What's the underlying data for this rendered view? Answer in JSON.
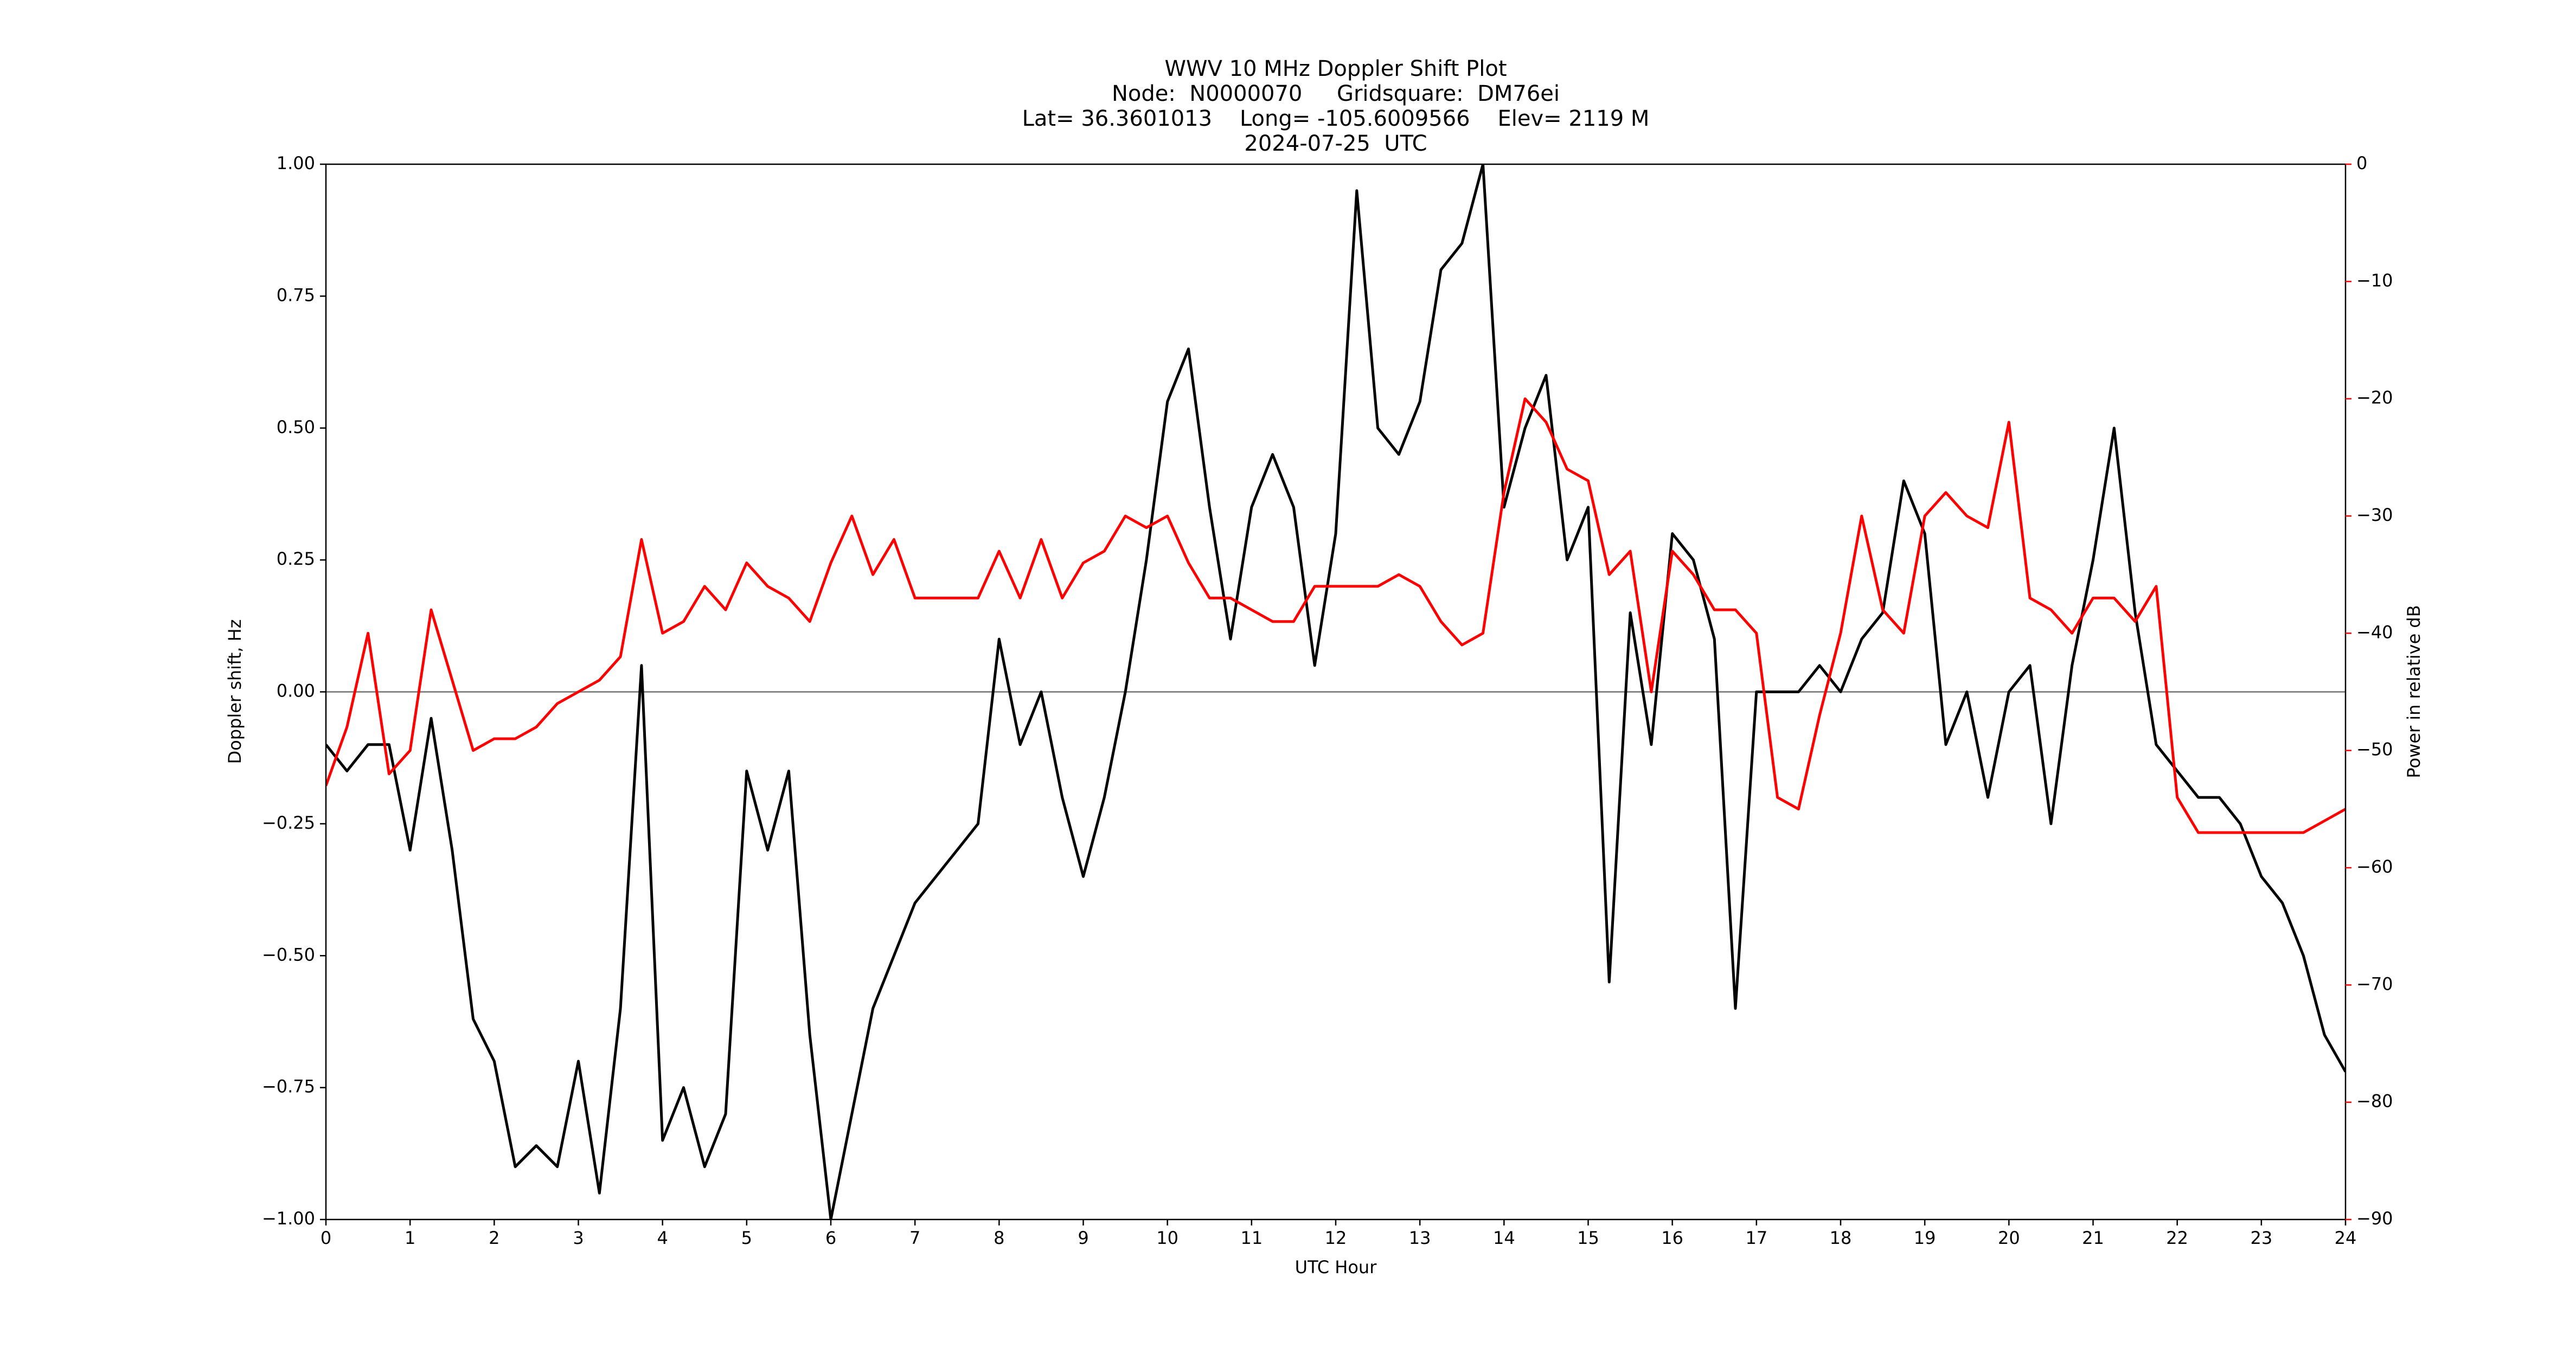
{
  "chart_data": {
    "type": "line",
    "title": "WWV 10 MHz Doppler Shift Plot",
    "subtitle": [
      "Node:  N0000070     Gridsquare:  DM76ei",
      "Lat= 36.3601013    Long= -105.6009566    Elev= 2119 M",
      "2024-07-25  UTC"
    ],
    "x_label": "UTC Hour",
    "y_label": "Doppler shift, Hz",
    "y2_label": "Power in relative dB",
    "x": [
      0,
      0.25,
      0.5,
      0.75,
      1,
      1.25,
      1.5,
      1.75,
      2,
      2.25,
      2.5,
      2.75,
      3,
      3.25,
      3.5,
      3.75,
      4,
      4.25,
      4.5,
      4.75,
      5,
      5.25,
      5.5,
      5.75,
      6,
      6.25,
      6.5,
      6.75,
      7,
      7.25,
      7.5,
      7.75,
      8,
      8.25,
      8.5,
      8.75,
      9,
      9.25,
      9.5,
      9.75,
      10,
      10.25,
      10.5,
      10.75,
      11,
      11.25,
      11.5,
      11.75,
      12,
      12.25,
      12.5,
      12.75,
      13,
      13.25,
      13.5,
      13.75,
      14,
      14.25,
      14.5,
      14.75,
      15,
      15.25,
      15.5,
      15.75,
      16,
      16.25,
      16.5,
      16.75,
      17,
      17.25,
      17.5,
      17.75,
      18,
      18.25,
      18.5,
      18.75,
      19,
      19.25,
      19.5,
      19.75,
      20,
      20.25,
      20.5,
      20.75,
      21,
      21.25,
      21.5,
      21.75,
      22,
      22.25,
      22.5,
      22.75,
      23,
      23.25,
      23.5,
      23.75,
      24
    ],
    "series": [
      {
        "name": "Doppler shift",
        "color": "#000000",
        "axis": "y",
        "values": [
          -0.1,
          -0.15,
          -0.1,
          -0.1,
          -0.3,
          -0.05,
          -0.3,
          -0.62,
          -0.7,
          -0.9,
          -0.86,
          -0.9,
          -0.7,
          -0.95,
          -0.6,
          0.05,
          -0.85,
          -0.75,
          -0.9,
          -0.8,
          -0.15,
          -0.3,
          -0.15,
          -0.65,
          -1.0,
          -0.8,
          -0.6,
          -0.5,
          -0.4,
          -0.35,
          -0.3,
          -0.25,
          0.1,
          -0.1,
          0.0,
          -0.2,
          -0.35,
          -0.2,
          0.0,
          0.25,
          0.55,
          0.65,
          0.35,
          0.1,
          0.35,
          0.45,
          0.35,
          0.05,
          0.3,
          0.95,
          0.5,
          0.45,
          0.55,
          0.8,
          0.85,
          1.0,
          0.35,
          0.5,
          0.6,
          0.25,
          0.35,
          -0.55,
          0.15,
          -0.1,
          0.3,
          0.25,
          0.1,
          -0.6,
          0.0,
          0.0,
          0.0,
          0.05,
          0.0,
          0.1,
          0.15,
          0.4,
          0.3,
          -0.1,
          0.0,
          -0.2,
          0.0,
          0.05,
          -0.25,
          0.05,
          0.25,
          0.5,
          0.15,
          -0.1,
          -0.15,
          -0.2,
          -0.2,
          -0.25,
          -0.35,
          -0.4,
          -0.5,
          -0.65,
          -0.72
        ]
      },
      {
        "name": "Power",
        "color": "#ff0000",
        "axis": "y2",
        "values": [
          -53,
          -48,
          -40,
          -52,
          -50,
          -38,
          -44,
          -50,
          -49,
          -49,
          -48,
          -46,
          -45,
          -44,
          -42,
          -32,
          -40,
          -39,
          -36,
          -38,
          -34,
          -36,
          -37,
          -39,
          -34,
          -30,
          -35,
          -32,
          -37,
          -37,
          -37,
          -37,
          -33,
          -37,
          -32,
          -37,
          -34,
          -33,
          -30,
          -31,
          -30,
          -34,
          -37,
          -37,
          -38,
          -39,
          -39,
          -36,
          -36,
          -36,
          -36,
          -35,
          -36,
          -39,
          -41,
          -40,
          -28,
          -20,
          -22,
          -26,
          -27,
          -35,
          -33,
          -45,
          -33,
          -35,
          -38,
          -38,
          -40,
          -54,
          -55,
          -47,
          -40,
          -30,
          -38,
          -40,
          -30,
          -28,
          -30,
          -31,
          -22,
          -37,
          -38,
          -40,
          -37,
          -37,
          -39,
          -36,
          -54,
          -57,
          -57,
          -57,
          -57,
          -57,
          -57,
          -56,
          -55
        ]
      }
    ],
    "xlim": [
      0,
      24
    ],
    "xticks": [
      0,
      1,
      2,
      3,
      4,
      5,
      6,
      7,
      8,
      9,
      10,
      11,
      12,
      13,
      14,
      15,
      16,
      17,
      18,
      19,
      20,
      21,
      22,
      23,
      24
    ],
    "ylim": [
      -1,
      1
    ],
    "yticks": [
      {
        "value": -1,
        "label": "−1.00"
      },
      {
        "value": -0.75,
        "label": "−0.75"
      },
      {
        "value": -0.5,
        "label": "−0.50"
      },
      {
        "value": -0.25,
        "label": "−0.25"
      },
      {
        "value": 0,
        "label": "0.00"
      },
      {
        "value": 0.25,
        "label": "0.25"
      },
      {
        "value": 0.5,
        "label": "0.50"
      },
      {
        "value": 0.75,
        "label": "0.75"
      },
      {
        "value": 1,
        "label": "1.00"
      }
    ],
    "y2lim": [
      -90,
      0
    ],
    "y2ticks": [
      {
        "value": -90,
        "label": "−90"
      },
      {
        "value": -80,
        "label": "−80"
      },
      {
        "value": -70,
        "label": "−70"
      },
      {
        "value": -60,
        "label": "−60"
      },
      {
        "value": -50,
        "label": "−50"
      },
      {
        "value": -40,
        "label": "−40"
      },
      {
        "value": -30,
        "label": "−30"
      },
      {
        "value": -20,
        "label": "−20"
      },
      {
        "value": -10,
        "label": "−10"
      },
      0
    ],
    "zero_line_color": "#888888"
  }
}
